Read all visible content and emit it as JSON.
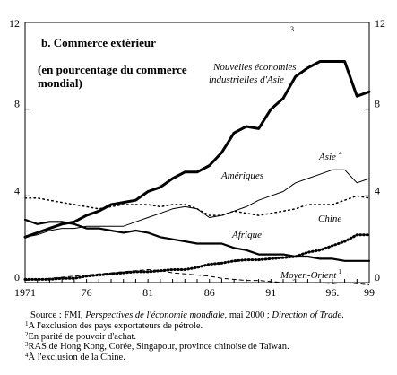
{
  "chart_data": {
    "type": "line",
    "title": "b. Commerce extérieur",
    "title_superscript": "3",
    "subtitle": "(en pourcentage du commerce mondial)",
    "ylim": [
      0,
      12
    ],
    "y_ticks": [
      0,
      4,
      8,
      12
    ],
    "y_tick_labels": [
      "0",
      "4",
      "8",
      "12"
    ],
    "xlim": [
      1971,
      1999
    ],
    "x_ticks": [
      1971,
      1976,
      1981,
      1986,
      1991,
      1996,
      1999
    ],
    "x_tick_labels": [
      "1971",
      "76",
      "81",
      "86",
      "91",
      "96.",
      "99"
    ],
    "grid": false,
    "x": [
      1971,
      1972,
      1973,
      1974,
      1975,
      1976,
      1977,
      1978,
      1979,
      1980,
      1981,
      1982,
      1983,
      1984,
      1985,
      1986,
      1987,
      1988,
      1989,
      1990,
      1991,
      1992,
      1993,
      1994,
      1995,
      1996,
      1997,
      1998,
      1999
    ],
    "series": [
      {
        "name": "Nouvelles économies industrielles d'Asie",
        "style": "thick",
        "values": [
          2.1,
          2.3,
          2.5,
          2.7,
          2.8,
          3.1,
          3.3,
          3.6,
          3.7,
          3.8,
          4.2,
          4.4,
          4.8,
          5.1,
          5.1,
          5.4,
          6.0,
          6.9,
          7.2,
          7.1,
          8.0,
          8.5,
          9.5,
          9.9,
          10.2,
          10.2,
          10.2,
          8.6,
          8.8
        ]
      },
      {
        "name": "Asie",
        "name_superscript": "4",
        "style": "thin",
        "values": [
          2.1,
          2.2,
          2.4,
          2.5,
          2.5,
          2.6,
          2.6,
          2.6,
          2.6,
          2.8,
          3.0,
          3.2,
          3.4,
          3.5,
          3.4,
          3.0,
          3.1,
          3.3,
          3.5,
          3.8,
          4.0,
          4.2,
          4.6,
          4.8,
          5.0,
          5.2,
          5.2,
          4.6,
          4.8
        ]
      },
      {
        "name": "Amériques",
        "style": "dotted-large",
        "values": [
          3.9,
          3.9,
          3.8,
          3.7,
          3.6,
          3.5,
          3.4,
          3.5,
          3.6,
          3.6,
          3.6,
          3.5,
          3.6,
          3.6,
          3.4,
          3.1,
          3.1,
          3.3,
          3.2,
          3.1,
          3.2,
          3.3,
          3.4,
          3.6,
          3.6,
          3.6,
          3.8,
          4.0,
          3.9
        ]
      },
      {
        "name": "Chine",
        "style": "dotted-fine",
        "values": [
          0.15,
          0.15,
          0.15,
          0.2,
          0.2,
          0.3,
          0.35,
          0.4,
          0.45,
          0.5,
          0.5,
          0.55,
          0.6,
          0.6,
          0.7,
          0.85,
          0.9,
          1.0,
          1.05,
          1.05,
          1.1,
          1.15,
          1.2,
          1.4,
          1.5,
          1.7,
          1.9,
          2.2,
          2.2
        ]
      },
      {
        "name": "Afrique",
        "style": "medium",
        "values": [
          2.9,
          2.7,
          2.8,
          2.8,
          2.7,
          2.5,
          2.5,
          2.4,
          2.3,
          2.4,
          2.3,
          2.1,
          2.0,
          1.9,
          1.8,
          1.8,
          1.8,
          1.6,
          1.5,
          1.3,
          1.3,
          1.3,
          1.2,
          1.2,
          1.1,
          1.1,
          1.0,
          1.0,
          1.0
        ]
      },
      {
        "name": "Moyen-Orient",
        "name_superscript": "1",
        "style": "dashed",
        "values": [
          0.1,
          0.15,
          0.2,
          0.25,
          0.3,
          0.35,
          0.4,
          0.45,
          0.5,
          0.55,
          0.6,
          0.55,
          0.45,
          0.4,
          0.35,
          0.3,
          0.2,
          0.15,
          0.1,
          0.1,
          0.05,
          0.0,
          0.0,
          0.0,
          0.0,
          -0.05,
          0.0,
          -0.05,
          -0.1
        ]
      }
    ]
  },
  "notes": {
    "source_prefix": "Source : FMI, ",
    "source_italic": "Perspectives de l'économie mondiale",
    "source_middle": ", mai 2000 ; ",
    "source_italic2": "Direction of Trade",
    "source_suffix": ".",
    "n1_mark": "1",
    "n1_text": "A l'exclusion des pays exportateurs de pétrole.",
    "n2_mark": "2",
    "n2_text": "En parité de pouvoir d'achat.",
    "n3_mark": "3",
    "n3_text": "RAS de Hong Kong, Corée, Singapour, province chinoise de Taïwan.",
    "n4_mark": "4",
    "n4_text": "À l'exclusion de la Chine."
  }
}
